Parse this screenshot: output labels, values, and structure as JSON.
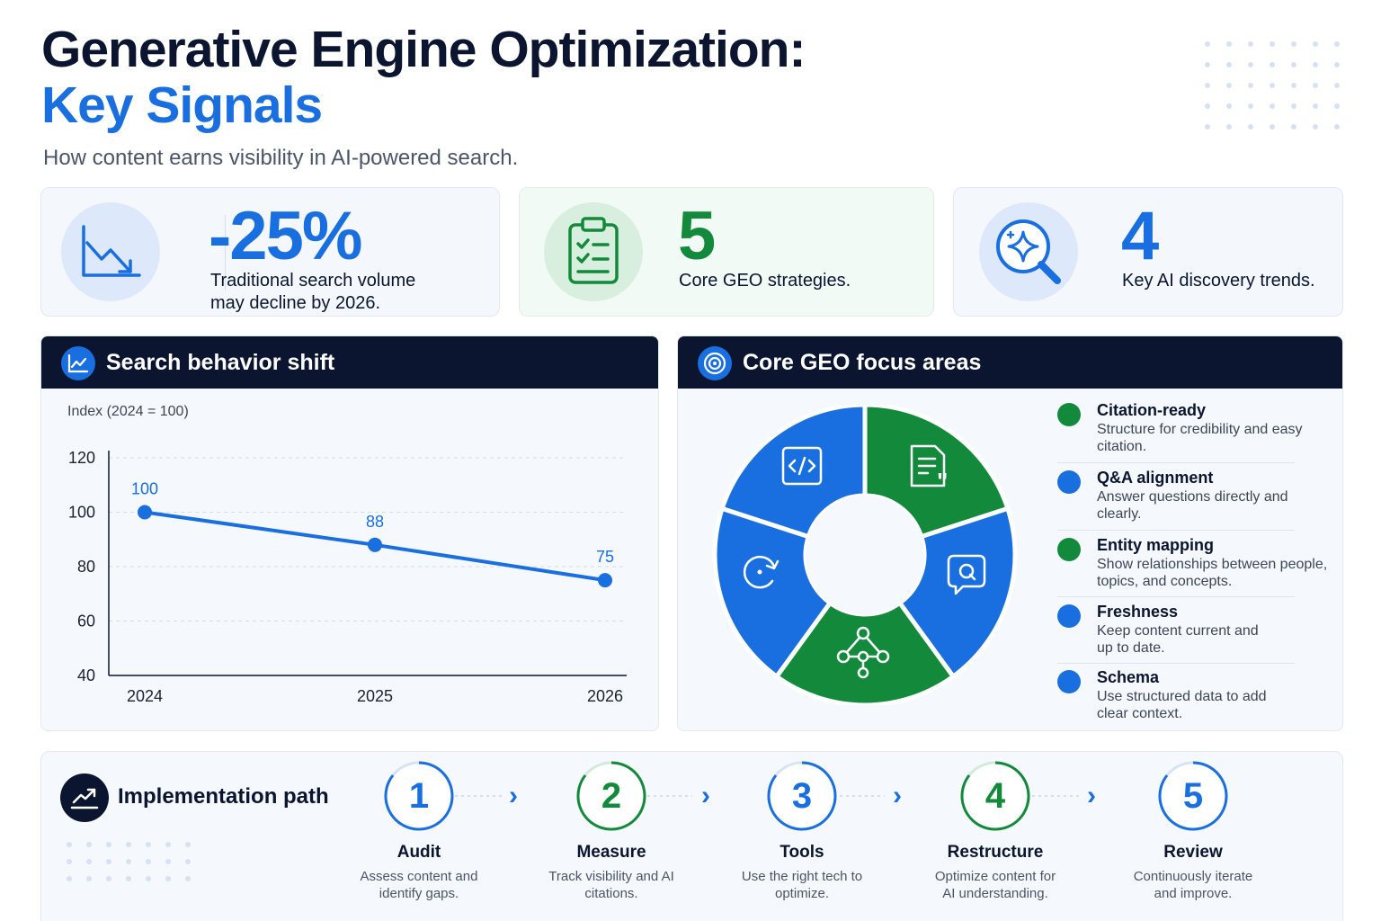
{
  "header": {
    "title_line1": "Generative Engine Optimization:",
    "title_line2": "Key Signals",
    "subtitle": "How content earns visibility in AI-powered search."
  },
  "stats": [
    {
      "value": "-25%",
      "text_line1": "Traditional search volume",
      "text_line2": "may decline by 2026.",
      "icon": "trend-down-icon",
      "color": "#1a6fe0"
    },
    {
      "value": "5",
      "text_line1": "Core GEO strategies.",
      "text_line2": "",
      "icon": "clipboard-checklist-icon",
      "color": "#138a3b"
    },
    {
      "value": "4",
      "text_line1": "Key AI discovery trends.",
      "text_line2": "",
      "icon": "magnifier-sparkle-icon",
      "color": "#1a6fe0"
    }
  ],
  "search_panel": {
    "title": "Search behavior shift",
    "icon": "line-chart-icon"
  },
  "chart_data": {
    "type": "line",
    "title": "Search behavior shift",
    "subtitle": "Index (2024 = 100)",
    "x": [
      "2024",
      "2025",
      "2026"
    ],
    "series": [
      {
        "values": [
          100,
          88,
          75
        ]
      }
    ],
    "data_labels": [
      "100",
      "88",
      "75"
    ],
    "ylim": [
      40,
      120
    ],
    "yticks": [
      40,
      60,
      80,
      100,
      120
    ],
    "grid": true,
    "color": "#1a6fe0"
  },
  "focus_panel": {
    "title": "Core GEO focus areas",
    "icon": "target-icon",
    "segment_icons": [
      "code-icon",
      "document-quote-icon",
      "chat-question-icon",
      "network-icon",
      "refresh-icon"
    ],
    "colors": {
      "green": "#138a3b",
      "blue": "#1a6fe0"
    },
    "items": [
      {
        "title": "Citation-ready",
        "desc": "Structure for credibility and easy citation.",
        "color": "#138a3b"
      },
      {
        "title": "Q&A alignment",
        "desc": "Answer questions directly and clearly.",
        "color": "#1a6fe0"
      },
      {
        "title": "Entity mapping",
        "desc": "Show relationships between people, topics, and concepts.",
        "color": "#138a3b"
      },
      {
        "title": "Freshness",
        "desc": "Keep content current and up to date.",
        "color": "#1a6fe0"
      },
      {
        "title": "Schema",
        "desc": "Use structured data to add clear context.",
        "color": "#1a6fe0"
      }
    ]
  },
  "implementation": {
    "title": "Implementation path",
    "icon": "trend-up-icon",
    "steps": [
      {
        "num": "1",
        "label": "Audit",
        "desc": "Assess content and identify gaps.",
        "color": "#1a6fe0"
      },
      {
        "num": "2",
        "label": "Measure",
        "desc": "Track visibility and AI citations.",
        "color": "#138a3b"
      },
      {
        "num": "3",
        "label": "Tools",
        "desc": "Use the right tech to optimize.",
        "color": "#1a6fe0"
      },
      {
        "num": "4",
        "label": "Restructure",
        "desc": "Optimize content for AI understanding.",
        "color": "#138a3b"
      },
      {
        "num": "5",
        "label": "Review",
        "desc": "Continuously iterate and improve.",
        "color": "#1a6fe0"
      }
    ]
  }
}
